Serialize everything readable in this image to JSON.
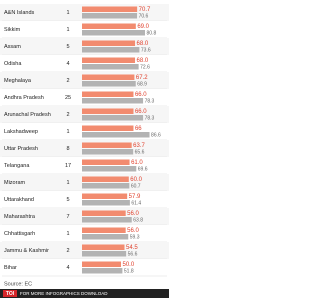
{
  "chart_data": {
    "type": "bar",
    "categories": [
      "A&N Islands",
      "Sikkim",
      "Assam",
      "Odisha",
      "Meghalaya",
      "Andhra Pradesh",
      "Arunachal Pradesh",
      "Lakshadweep",
      "Uttar Pradesh",
      "Telangana",
      "Mizoram",
      "Uttarakhand",
      "Maharashtra",
      "Chhattisgarh",
      "Jammu & Kashmir",
      "Bihar"
    ],
    "counts": [
      1,
      1,
      5,
      4,
      2,
      25,
      2,
      1,
      8,
      17,
      1,
      5,
      7,
      1,
      2,
      4
    ],
    "series": [
      {
        "color": "#f28b6f",
        "label_color": "#e0402c",
        "values": [
          70.7,
          69.0,
          68.0,
          68.0,
          67.2,
          66.0,
          66.0,
          66.0,
          63.7,
          61.0,
          60.0,
          57.9,
          56.0,
          56.0,
          54.5,
          50.0
        ],
        "value_labels": [
          "70.7",
          "69.0",
          "68.0",
          "68.0",
          "67.2",
          "66.0",
          "66.0",
          "66",
          "63.7",
          "61.0",
          "60.0",
          "57.9",
          "56.0",
          "56.0",
          "54.5",
          "50.0"
        ]
      },
      {
        "color": "#b3b3b3",
        "label_color": "#666666",
        "values": [
          70.6,
          80.8,
          73.6,
          72.6,
          68.9,
          78.3,
          78.3,
          86.6,
          65.6,
          69.6,
          60.7,
          61.4,
          63.8,
          59.3,
          56.6,
          51.8
        ],
        "value_labels": [
          "70.6",
          "80.8",
          "73.6",
          "72.6",
          "68.9",
          "78.3",
          "78.3",
          "86.6",
          "65.6",
          "69.6",
          "60.7",
          "61.4",
          "63.8",
          "59.3",
          "56.6",
          "51.8"
        ]
      }
    ],
    "xlim": [
      0,
      100
    ],
    "source": "Source: EC",
    "footer": "FOR MORE INFOGRAPHICS DOWNLOAD",
    "logo": "TOI"
  }
}
